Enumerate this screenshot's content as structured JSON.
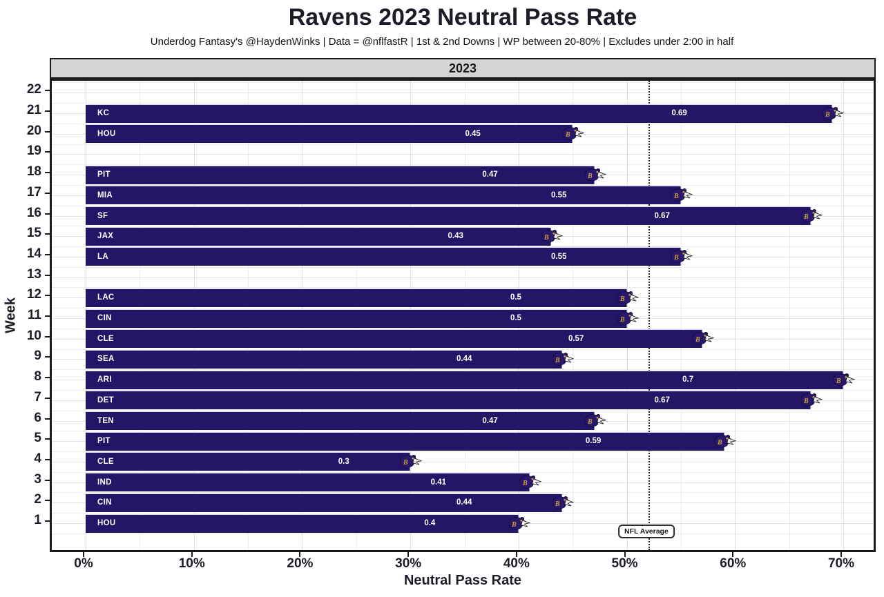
{
  "title": "Ravens 2023 Neutral Pass Rate",
  "subtitle": "Underdog Fantasy's @HaydenWinks | Data = @nflfastR | 1st & 2nd Downs | WP between 20-80% | Excludes under 2:00 in half",
  "facet_label": "2023",
  "chart_data": {
    "type": "bar",
    "orientation": "horizontal",
    "title": "Ravens 2023 Neutral Pass Rate",
    "xlabel": "Neutral Pass Rate",
    "ylabel": "Week",
    "x_tick_values": [
      0,
      0.1,
      0.2,
      0.3,
      0.4,
      0.5,
      0.6,
      0.7
    ],
    "x_tick_labels": [
      "0%",
      "10%",
      "20%",
      "30%",
      "40%",
      "50%",
      "60%",
      "70%"
    ],
    "x_minor_step": 0.05,
    "xlim_max": 0.7,
    "weeks": [
      1,
      2,
      3,
      4,
      5,
      6,
      7,
      8,
      9,
      10,
      11,
      12,
      13,
      14,
      15,
      16,
      17,
      18,
      19,
      20,
      21,
      22
    ],
    "weeks_without_bars": [
      13,
      19,
      22
    ],
    "grid": true,
    "bars": [
      {
        "week": 21,
        "opponent": "KC",
        "value": 0.69,
        "label": "0.69"
      },
      {
        "week": 20,
        "opponent": "HOU",
        "value": 0.45,
        "label": "0.45"
      },
      {
        "week": 18,
        "opponent": "PIT",
        "value": 0.47,
        "label": "0.47"
      },
      {
        "week": 17,
        "opponent": "MIA",
        "value": 0.55,
        "label": "0.55"
      },
      {
        "week": 16,
        "opponent": "SF",
        "value": 0.67,
        "label": "0.67"
      },
      {
        "week": 15,
        "opponent": "JAX",
        "value": 0.43,
        "label": "0.43"
      },
      {
        "week": 14,
        "opponent": "LA",
        "value": 0.55,
        "label": "0.55"
      },
      {
        "week": 12,
        "opponent": "LAC",
        "value": 0.5,
        "label": "0.5"
      },
      {
        "week": 11,
        "opponent": "CIN",
        "value": 0.5,
        "label": "0.5"
      },
      {
        "week": 10,
        "opponent": "CLE",
        "value": 0.57,
        "label": "0.57"
      },
      {
        "week": 9,
        "opponent": "SEA",
        "value": 0.44,
        "label": "0.44"
      },
      {
        "week": 8,
        "opponent": "ARI",
        "value": 0.7,
        "label": "0.7"
      },
      {
        "week": 7,
        "opponent": "DET",
        "value": 0.67,
        "label": "0.67"
      },
      {
        "week": 6,
        "opponent": "TEN",
        "value": 0.47,
        "label": "0.47"
      },
      {
        "week": 5,
        "opponent": "PIT",
        "value": 0.59,
        "label": "0.59"
      },
      {
        "week": 4,
        "opponent": "CLE",
        "value": 0.3,
        "label": "0.3"
      },
      {
        "week": 3,
        "opponent": "IND",
        "value": 0.41,
        "label": "0.41"
      },
      {
        "week": 2,
        "opponent": "CIN",
        "value": 0.44,
        "label": "0.44"
      },
      {
        "week": 1,
        "opponent": "HOU",
        "value": 0.4,
        "label": "0.4"
      }
    ],
    "reference_line": {
      "value": 0.52,
      "label": "NFL Average",
      "style": "dotted"
    },
    "colors": {
      "bar_fill": "#251566",
      "bar_text": "#ffffff",
      "facet_strip_bg": "#d4d4d4",
      "border": "#1a1a1a",
      "logo_gold": "#c9a23b",
      "logo_beak": "#efefef"
    },
    "marker_icon": "ravens-logo-icon"
  }
}
